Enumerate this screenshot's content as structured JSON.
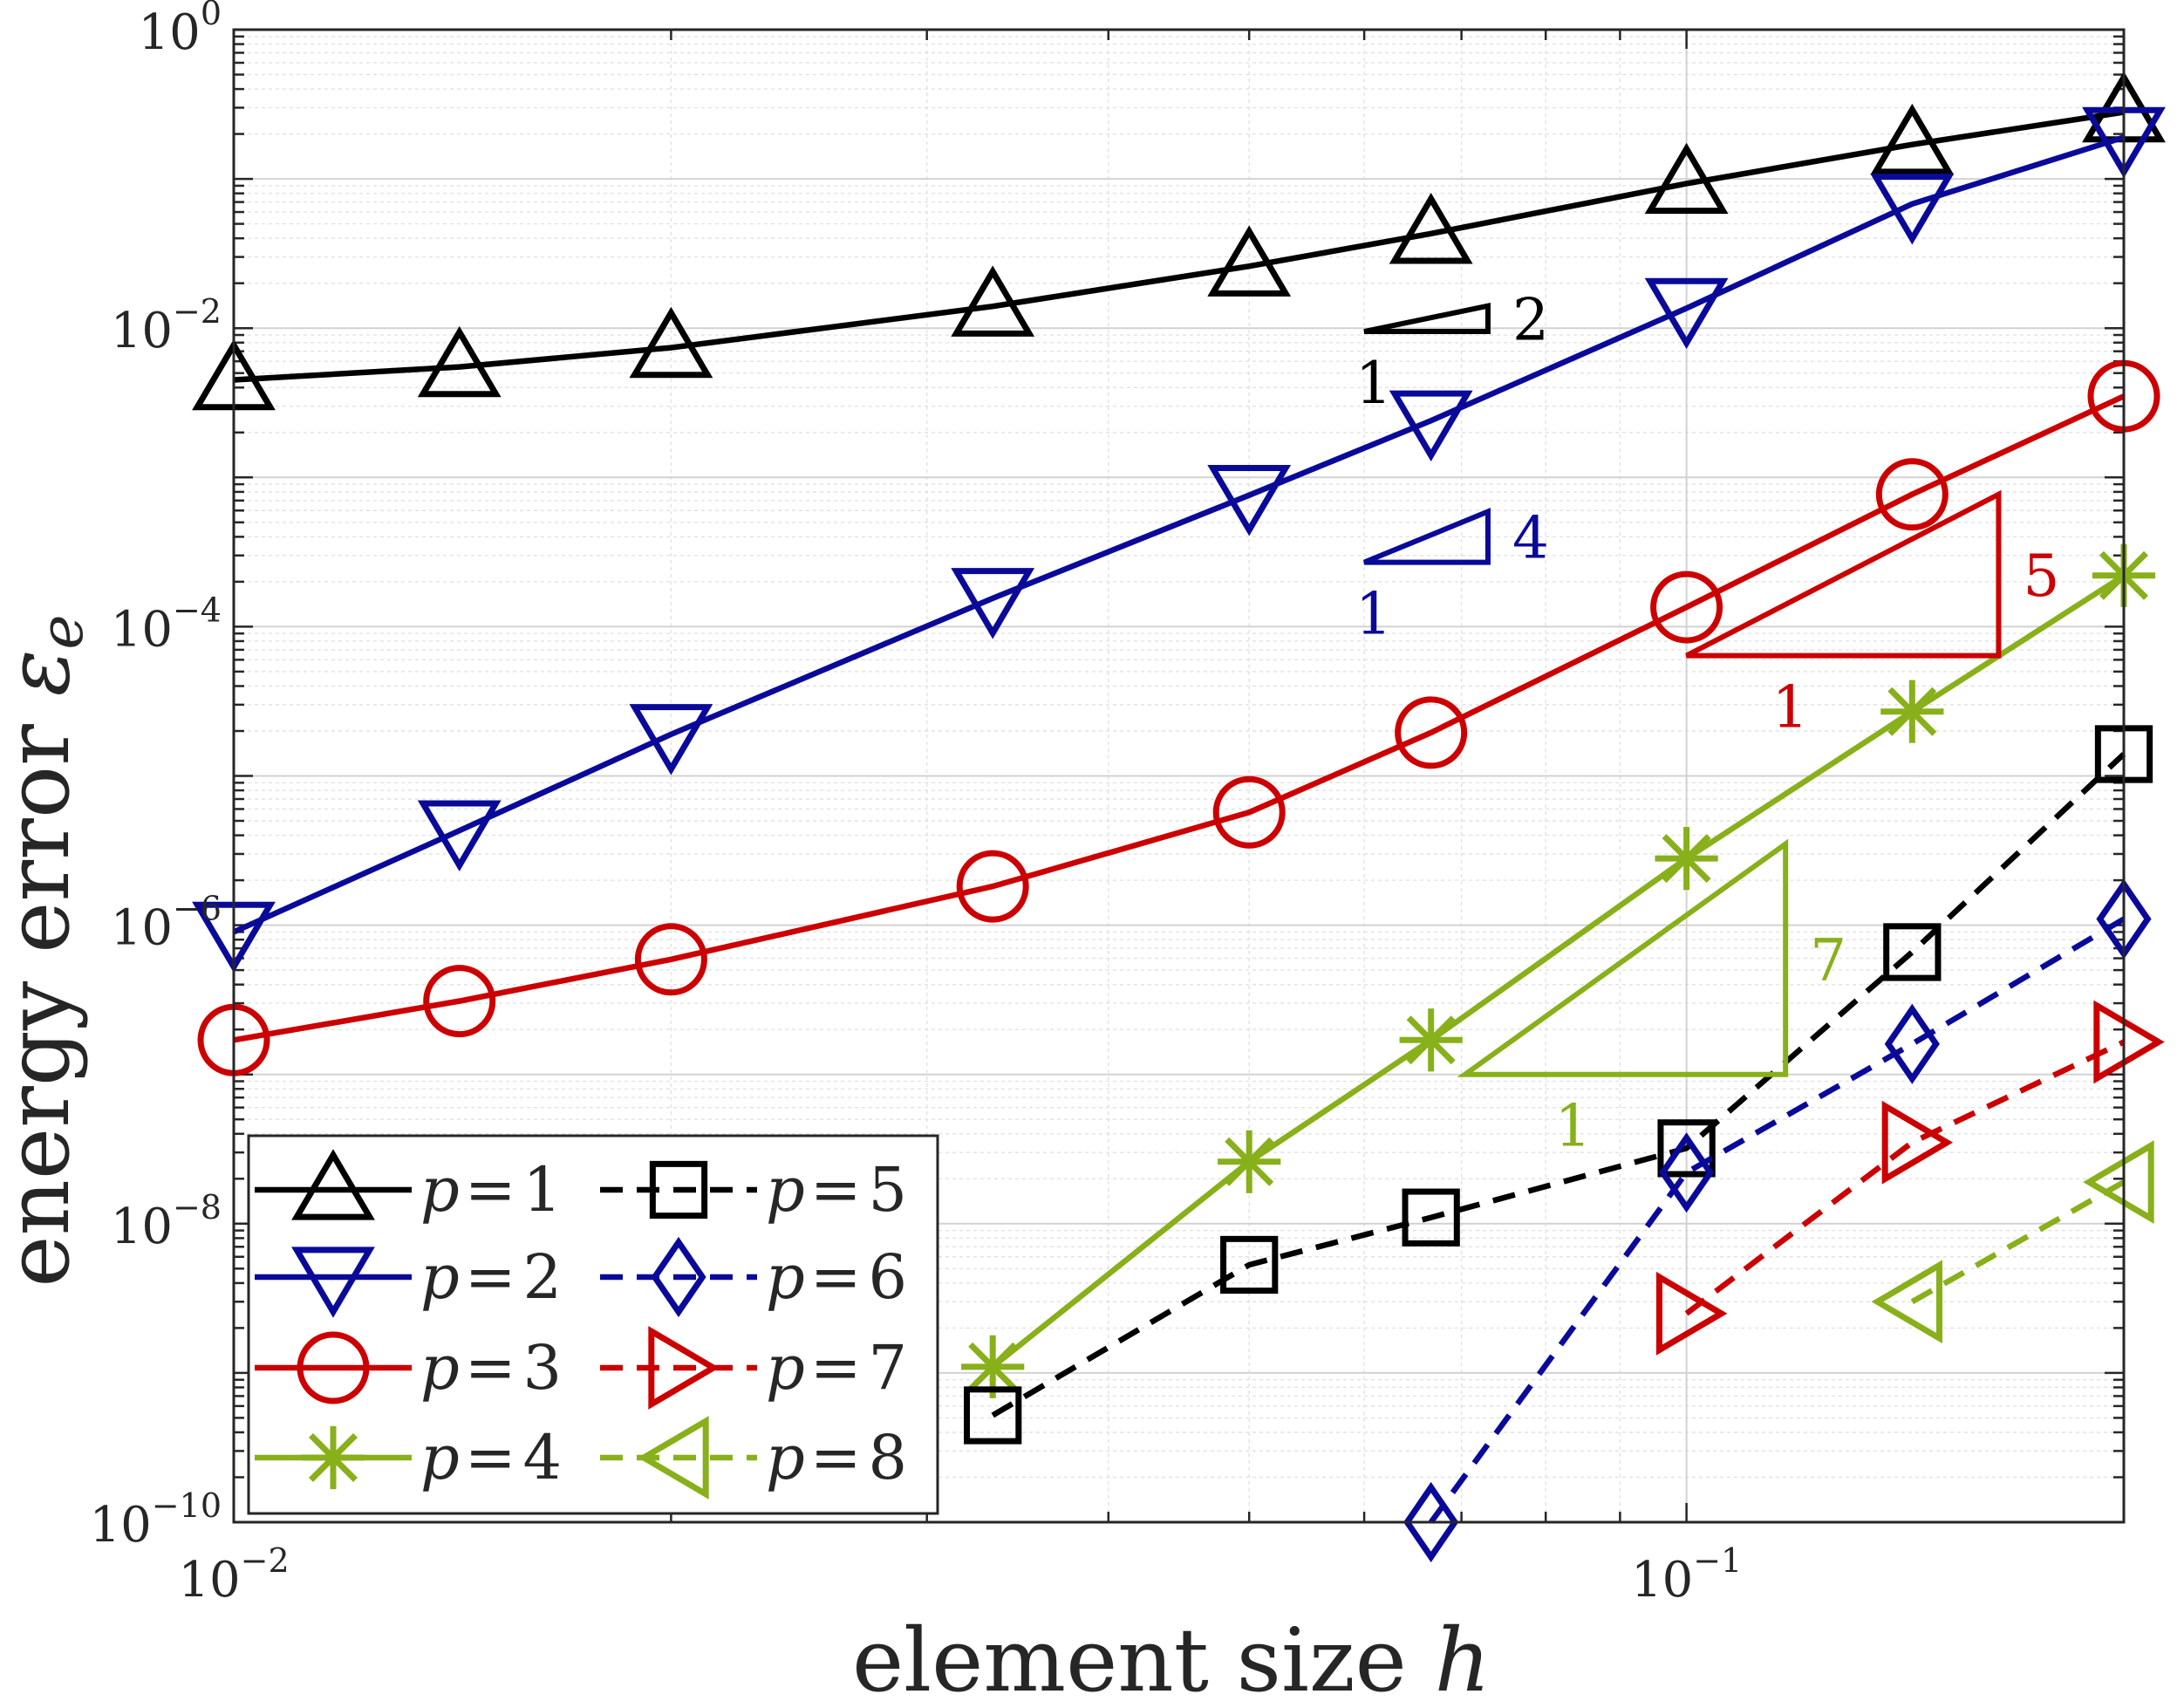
{
  "chart_data": {
    "type": "line",
    "xlabel": "element size ",
    "xlabel_var": "h",
    "ylabel": "energy error ",
    "ylabel_var": "ε",
    "ylabel_sub": "e",
    "xscale": "log",
    "yscale": "log",
    "xlim": [
      0.01,
      0.2
    ],
    "ylim": [
      1e-10,
      1
    ],
    "grid": true,
    "minor_grid": true,
    "legend_position": "bottom-left",
    "x_ticks": [
      {
        "base": "10",
        "exp": "−2",
        "value": 0.01
      },
      {
        "base": "10",
        "exp": "−1",
        "value": 0.1
      }
    ],
    "y_ticks": [
      {
        "base": "10",
        "exp": "0",
        "value": 1
      },
      {
        "base": "10",
        "exp": "−2",
        "value": 0.01
      },
      {
        "base": "10",
        "exp": "−4",
        "value": 0.0001
      },
      {
        "base": "10",
        "exp": "−6",
        "value": 1e-06
      },
      {
        "base": "10",
        "exp": "−8",
        "value": 1e-08
      },
      {
        "base": "10",
        "exp": "−10",
        "value": 1e-10
      }
    ],
    "series": [
      {
        "name": "p = 1",
        "var": "p",
        "eq": "=",
        "num": "1",
        "color": "#000000",
        "dash": false,
        "marker": "triangle-up",
        "x": [
          0.01,
          0.0143,
          0.02,
          0.0333,
          0.05,
          0.0667,
          0.1,
          0.143,
          0.2
        ],
        "y": [
          0.0045,
          0.0055,
          0.0074,
          0.014,
          0.026,
          0.043,
          0.093,
          0.17,
          0.28
        ]
      },
      {
        "name": "p = 2",
        "var": "p",
        "eq": "=",
        "num": "2",
        "color": "#0a0a9a",
        "dash": false,
        "marker": "triangle-down",
        "x": [
          0.01,
          0.0143,
          0.02,
          0.0333,
          0.05,
          0.0667,
          0.1,
          0.143,
          0.2
        ],
        "y": [
          9e-07,
          4.3e-06,
          1.9e-05,
          0.000155,
          0.00076,
          0.0024,
          0.0136,
          0.068,
          0.19
        ]
      },
      {
        "name": "p = 3",
        "var": "p",
        "eq": "=",
        "num": "3",
        "color": "#cc0000",
        "dash": false,
        "marker": "circle",
        "x": [
          0.01,
          0.0143,
          0.02,
          0.0333,
          0.05,
          0.0667,
          0.1,
          0.143,
          0.2
        ],
        "y": [
          1.7e-07,
          3.1e-07,
          5.9e-07,
          1.82e-06,
          5.7e-06,
          1.95e-05,
          0.000135,
          0.00077,
          0.0035
        ]
      },
      {
        "name": "p = 4",
        "var": "p",
        "eq": "=",
        "num": "4",
        "color": "#88b01a",
        "dash": false,
        "marker": "asterisk",
        "x": [
          0.0333,
          0.05,
          0.0667,
          0.1,
          0.143,
          0.2
        ],
        "y": [
          1.1e-09,
          2.6e-08,
          1.7e-07,
          2.8e-06,
          2.7e-05,
          0.00022
        ]
      },
      {
        "name": "p = 5",
        "var": "p",
        "eq": "=",
        "num": "5",
        "color": "#000000",
        "dash": true,
        "marker": "square",
        "x": [
          0.0333,
          0.05,
          0.0667,
          0.1,
          0.143,
          0.2
        ],
        "y": [
          5.2e-10,
          5.3e-09,
          1.1e-08,
          3.2e-08,
          6.6e-07,
          1.4e-05
        ]
      },
      {
        "name": "p = 6",
        "var": "p",
        "eq": "=",
        "num": "6",
        "color": "#0a0a9a",
        "dash": true,
        "marker": "diamond",
        "x": [
          0.0667,
          0.1,
          0.143,
          0.2
        ],
        "y": [
          1e-10,
          2.2e-08,
          1.6e-07,
          1.1e-06
        ]
      },
      {
        "name": "p = 7",
        "var": "p",
        "eq": "=",
        "num": "7",
        "color": "#cc0000",
        "dash": true,
        "marker": "triangle-right",
        "x": [
          0.1,
          0.143,
          0.2
        ],
        "y": [
          2.5e-09,
          3.5e-08,
          1.65e-07
        ]
      },
      {
        "name": "p = 8",
        "var": "p",
        "eq": "=",
        "num": "8",
        "color": "#88b01a",
        "dash": true,
        "marker": "triangle-left",
        "x": [
          0.143,
          0.2
        ],
        "y": [
          3e-09,
          1.9e-08
        ]
      }
    ],
    "slope_triangles": [
      {
        "color": "#000000",
        "run_label": "1",
        "rise_label": "2",
        "x": [
          0.06,
          0.073
        ],
        "y": [
          0.0095,
          0.0141
        ]
      },
      {
        "color": "#0a0a9a",
        "run_label": "1",
        "rise_label": "4",
        "x": [
          0.06,
          0.073
        ],
        "y": [
          0.00027,
          0.00059
        ]
      },
      {
        "color": "#cc0000",
        "run_label": "1",
        "rise_label": "5",
        "x": [
          0.1,
          0.164
        ],
        "y": [
          6.4e-05,
          0.00077
        ]
      },
      {
        "color": "#88b01a",
        "run_label": "1",
        "rise_label": "7",
        "x": [
          0.0704,
          0.117
        ],
        "y": [
          1e-07,
          3.5e-06
        ]
      }
    ]
  }
}
